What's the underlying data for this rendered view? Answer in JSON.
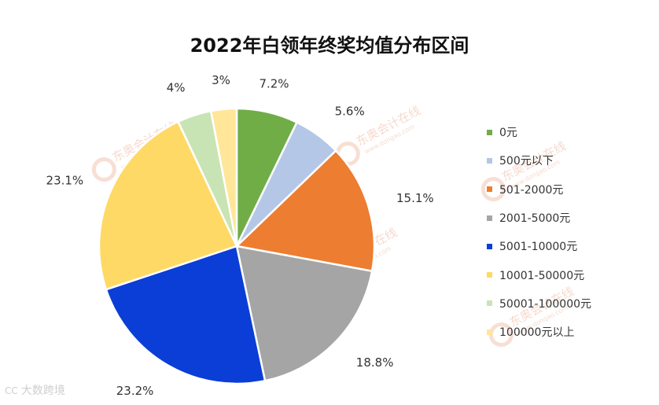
{
  "chart_data": {
    "type": "pie",
    "title": "2022年白领年终奖均值分布区间",
    "categories": [
      "0元",
      "500元以下",
      "501-2000元",
      "2001-5000元",
      "5001-10000元",
      "10001-50000元",
      "50001-100000元",
      "100000元以上"
    ],
    "values": [
      7.2,
      5.6,
      15.1,
      18.8,
      23.2,
      23.1,
      4,
      3
    ],
    "value_labels": [
      "7.2%",
      "5.6%",
      "15.1%",
      "18.8%",
      "23.2%",
      "23.1%",
      "4%",
      "3%"
    ],
    "colors": [
      "#70AD47",
      "#B4C7E7",
      "#ED7D31",
      "#A5A5A5",
      "#0A3ED6",
      "#FFD966",
      "#C9E4B4",
      "#FFE699"
    ],
    "legend_position": "right",
    "start_angle": "12 o'clock, clockwise"
  },
  "watermark": {
    "brand": "东奥会计在线",
    "domain": "www.dongao.com",
    "corner_logo": "CC",
    "corner_text": "大数跨境"
  }
}
